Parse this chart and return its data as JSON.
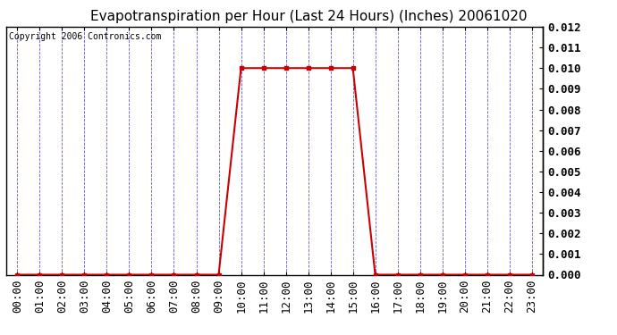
{
  "title": "Evapotranspiration per Hour (Last 24 Hours) (Inches) 20061020",
  "copyright": "Copyright 2006 Contronics.com",
  "hours": [
    0,
    1,
    2,
    3,
    4,
    5,
    6,
    7,
    8,
    9,
    10,
    11,
    12,
    13,
    14,
    15,
    16,
    17,
    18,
    19,
    20,
    21,
    22,
    23
  ],
  "values": [
    0.0,
    0.0,
    0.0,
    0.0,
    0.0,
    0.0,
    0.0,
    0.0,
    0.0,
    0.0,
    0.01,
    0.01,
    0.01,
    0.01,
    0.01,
    0.01,
    0.0,
    0.0,
    0.0,
    0.0,
    0.0,
    0.0,
    0.0,
    0.0
  ],
  "xlabels": [
    "00:00",
    "01:00",
    "02:00",
    "03:00",
    "04:00",
    "05:00",
    "06:00",
    "07:00",
    "08:00",
    "09:00",
    "10:00",
    "11:00",
    "12:00",
    "13:00",
    "14:00",
    "15:00",
    "16:00",
    "17:00",
    "18:00",
    "19:00",
    "20:00",
    "21:00",
    "22:00",
    "23:00"
  ],
  "ylim": [
    0.0,
    0.012
  ],
  "yticks": [
    0.0,
    0.001,
    0.002,
    0.003,
    0.004,
    0.005,
    0.006,
    0.007,
    0.008,
    0.009,
    0.01,
    0.011,
    0.012
  ],
  "line_color": "#cc0000",
  "marker": "s",
  "marker_size": 3,
  "grid_color": "#3333cc",
  "grid_style": "--",
  "grid_alpha": 0.8,
  "bg_color": "#ffffff",
  "title_fontsize": 11,
  "copyright_fontsize": 7,
  "tick_fontsize": 9,
  "figwidth": 6.9,
  "figheight": 3.75,
  "dpi": 100
}
